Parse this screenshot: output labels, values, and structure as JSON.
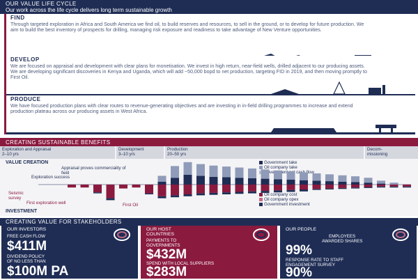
{
  "header": {
    "title": "OUR VALUE LIFE CYCLE",
    "subtitle": "Our work across the life cycle delivers long term sustainable growth"
  },
  "find": {
    "title": "FIND",
    "text": "Through targeted exploration in Africa and South America we find oil, to build reserves and resources, to sell in the ground, or to develop for future production. We aim to build the best inventory of prospects for drilling, managing risk exposure and readiness to take advantage of New Venture opportunities."
  },
  "develop": {
    "title": "DEVELOP",
    "text": "We are focused on appraisal and development with clear plans for monetisation. We invest in high return, near-field wells, drilled adjacent to our producing assets. We are developing significant discoveries in Kenya and Uganda, which will add ~50,000 bopd to net production, targeting FID in 2019, and then moving promptly to First Oil."
  },
  "produce": {
    "title": "PRODUCE",
    "text": "We have focused production plans with clear routes to revenue-generating objectives and are investing in in-field drilling programmes to increase and extend production plateau across our producing assets in West Africa."
  },
  "benefits": {
    "title": "CREATING SUSTAINABLE BENEFITS",
    "phases": [
      {
        "name": "Exploration and Appraisal",
        "years": "2–10 yrs"
      },
      {
        "name": "Development",
        "years": "3–10 yrs"
      },
      {
        "name": "Production",
        "years": "20–50 yrs"
      },
      {
        "name": "Decom-",
        "years": "missioning"
      }
    ],
    "value_creation": "VALUE CREATION",
    "investment": "INVESTMENT",
    "annotations": {
      "seismic": "Seismic survey",
      "exploration_success": "Exploration success",
      "appraisal": "Appraisal proves commerciality of field",
      "first_well": "First exploration well",
      "first_oil": "First Oil"
    },
    "legend_top": [
      "Government take",
      "Oil company take",
      "Government net cash flow"
    ],
    "legend_bottom": [
      "Oil company cost",
      "Oil company opex",
      "Government investment"
    ]
  },
  "chart_data": {
    "type": "bar",
    "title": "",
    "series": [
      {
        "name": "Government take",
        "values": [
          0,
          0,
          0,
          0,
          0,
          0,
          0,
          0,
          0,
          3,
          7,
          10,
          9,
          8,
          7.5,
          7,
          6.5,
          6,
          5.5,
          5,
          4.5,
          4,
          3.5,
          3,
          2.5,
          2,
          1,
          0,
          0
        ]
      },
      {
        "name": "Oil company take",
        "values": [
          0,
          0,
          0,
          0,
          0,
          0,
          0,
          0,
          0,
          6,
          12,
          13,
          12,
          11.5,
          11,
          10.5,
          10,
          9.5,
          9,
          8.5,
          8,
          7.5,
          7,
          6.5,
          6,
          5,
          3,
          2,
          0
        ]
      },
      {
        "name": "Oil company cost",
        "values": [
          0,
          0,
          -3,
          -3,
          -8,
          -14,
          -4,
          -3,
          -9,
          -12,
          -11,
          -10,
          -9,
          -8.5,
          -8,
          -7.5,
          -7,
          -6.5,
          -6,
          -5.5,
          -5,
          -4.5,
          -4,
          -3.5,
          -3,
          -2.5,
          -2,
          -2,
          -2
        ]
      },
      {
        "name": "Government investment",
        "values": [
          0,
          0,
          0,
          0,
          -1,
          -2,
          0,
          0,
          -1,
          -2,
          -2,
          -2,
          -2,
          -2,
          -2,
          -2,
          -2,
          -2,
          -2,
          -2,
          -2,
          -1,
          -1,
          -1,
          -1,
          -1,
          -1,
          -1,
          -1
        ]
      }
    ]
  },
  "stakeholders": {
    "title": "CREATING VALUE FOR STAKEHOLDERS",
    "investors": {
      "title": "OUR INVESTORS",
      "fcf_label": "FREE CASH FLOW",
      "fcf_value": "$411M",
      "div_label1": "DIVIDEND POLICY",
      "div_label2": "OF NO LESS THAN",
      "div_value": "$100M PA"
    },
    "host": {
      "title1": "OUR HOST",
      "title2": "COUNTRIES",
      "pay_label1": "PAYMENTS TO",
      "pay_label2": "GOVERNMENTS",
      "pay_value": "$432M",
      "spend_label": "SPEND WITH LOCAL SUPPLIERS",
      "spend_value": "$283M"
    },
    "people": {
      "title": "OUR PEOPLE",
      "emp_label1": "EMPLOYEES",
      "emp_label2": "AWARDED SHARES",
      "emp_value": "99%",
      "resp_label1": "RESPONSE RATE TO STAFF",
      "resp_label2": "ENGAGEMENT SURVEY",
      "resp_value": "90%"
    }
  },
  "colors": {
    "navy": "#1f2d55",
    "maroon": "#8b1a3f",
    "grey": "#d5d7df"
  }
}
